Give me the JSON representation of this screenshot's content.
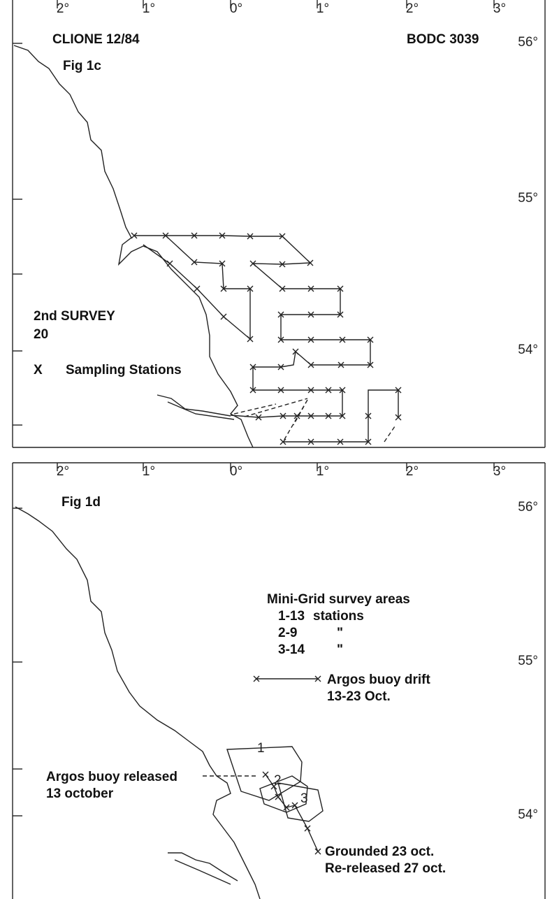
{
  "panels": [
    {
      "cruise": "CLIONE 12/84",
      "reference": "BODC 3039",
      "figure_label": "Fig 1c",
      "longitude_labels": [
        "2°",
        "1°",
        "0°",
        "1°",
        "2°",
        "3°"
      ],
      "latitude_labels": [
        "56°",
        "55°",
        "54°"
      ],
      "legend": {
        "title": "2nd SURVEY",
        "subtitle": "20",
        "symbol": "X",
        "label": "Sampling Stations"
      }
    },
    {
      "figure_label": "Fig 1d",
      "longitude_labels": [
        "2°",
        "1°",
        "0°",
        "1°",
        "2°",
        "3°"
      ],
      "latitude_labels": [
        "56°",
        "55°",
        "54°"
      ],
      "legend": {
        "title": "Mini-Grid survey areas",
        "rows": [
          [
            "1-13",
            "stations"
          ],
          [
            "2-9",
            "\""
          ],
          [
            "3-14",
            "\""
          ]
        ],
        "drift": "Argos buoy drift",
        "drift_dates": "13-23 Oct."
      },
      "annotations": {
        "released": "Argos buoy released",
        "released_date": "13 october",
        "grounded": "Grounded 23 oct.",
        "rereleased": "Re-released 27 oct."
      },
      "area_labels": [
        "1",
        "2",
        "3"
      ]
    }
  ]
}
